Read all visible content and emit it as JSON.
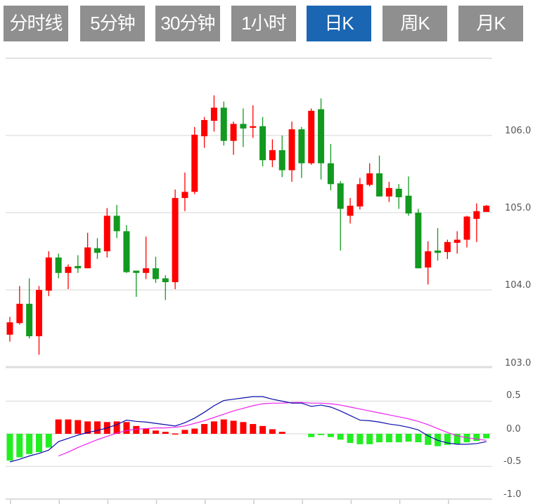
{
  "tabs": [
    {
      "label": "分时线",
      "active": false
    },
    {
      "label": "5分钟",
      "active": false
    },
    {
      "label": "30分钟",
      "active": false
    },
    {
      "label": "1小时",
      "active": false
    },
    {
      "label": "日K",
      "active": true
    },
    {
      "label": "周K",
      "active": false
    },
    {
      "label": "月K",
      "active": false
    }
  ],
  "colors": {
    "up": "#ff0000",
    "down": "#119a1f",
    "macd_up": "#ff0000",
    "macd_down": "#22ee22",
    "dif": "#0a0aaa",
    "dea": "#ee22ee",
    "tab_bg": "#8f8f8f",
    "tab_active": "#1a66b3",
    "grid": "#dddddd"
  },
  "chart_data": [
    {
      "type": "candlestick",
      "ylim": [
        103.0,
        106.5
      ],
      "yticks": [
        "106.0",
        "105.0",
        "104.0",
        "103.0"
      ],
      "ytick_values": [
        106.0,
        105.0,
        104.0,
        103.0
      ],
      "grid": true,
      "ohlc": [
        [
          103.42,
          103.65,
          103.33,
          103.58
        ],
        [
          103.57,
          104.05,
          103.55,
          103.82
        ],
        [
          103.82,
          104.15,
          103.37,
          103.4
        ],
        [
          103.4,
          104.05,
          103.16,
          104.0
        ],
        [
          103.99,
          104.5,
          103.92,
          104.42
        ],
        [
          104.42,
          104.47,
          104.15,
          104.22
        ],
        [
          104.22,
          104.33,
          104.01,
          104.3
        ],
        [
          104.31,
          104.45,
          104.22,
          104.28
        ],
        [
          104.28,
          104.74,
          104.28,
          104.55
        ],
        [
          104.54,
          104.67,
          104.4,
          104.48
        ],
        [
          104.5,
          105.06,
          104.42,
          104.96
        ],
        [
          104.96,
          105.1,
          104.67,
          104.76
        ],
        [
          104.76,
          104.84,
          104.22,
          104.23
        ],
        [
          104.25,
          104.25,
          103.91,
          104.22
        ],
        [
          104.22,
          104.69,
          104.14,
          104.28
        ],
        [
          104.28,
          104.43,
          104.09,
          104.14
        ],
        [
          104.15,
          104.19,
          103.87,
          104.1
        ],
        [
          104.1,
          105.3,
          104.01,
          105.19
        ],
        [
          105.19,
          105.52,
          105.02,
          105.27
        ],
        [
          105.27,
          106.11,
          105.24,
          106.01
        ],
        [
          105.99,
          106.24,
          105.84,
          106.2
        ],
        [
          106.19,
          106.52,
          106.05,
          106.36
        ],
        [
          106.36,
          106.44,
          105.87,
          105.93
        ],
        [
          105.93,
          106.18,
          105.75,
          106.15
        ],
        [
          106.15,
          106.35,
          105.85,
          106.09
        ],
        [
          106.1,
          106.39,
          105.97,
          106.12
        ],
        [
          106.12,
          106.24,
          105.6,
          105.68
        ],
        [
          105.68,
          105.95,
          105.59,
          105.81
        ],
        [
          105.81,
          106.0,
          105.46,
          105.55
        ],
        [
          105.55,
          106.18,
          105.4,
          106.08
        ],
        [
          106.08,
          106.11,
          105.45,
          105.64
        ],
        [
          105.64,
          106.35,
          105.62,
          106.32
        ],
        [
          106.34,
          106.48,
          105.43,
          105.64
        ],
        [
          105.64,
          105.89,
          105.29,
          105.37
        ],
        [
          105.38,
          105.41,
          104.51,
          105.05
        ],
        [
          104.96,
          105.19,
          104.86,
          105.09
        ],
        [
          105.08,
          105.45,
          105.04,
          105.37
        ],
        [
          105.36,
          105.64,
          105.34,
          105.51
        ],
        [
          105.51,
          105.74,
          105.21,
          105.21
        ],
        [
          105.21,
          105.4,
          105.14,
          105.32
        ],
        [
          105.31,
          105.37,
          105.05,
          105.2
        ],
        [
          105.22,
          105.47,
          104.96,
          104.99
        ],
        [
          105.0,
          105.05,
          104.28,
          104.28
        ],
        [
          104.29,
          104.63,
          104.07,
          104.5
        ],
        [
          104.51,
          104.8,
          104.38,
          104.48
        ],
        [
          104.49,
          104.65,
          104.4,
          104.62
        ],
        [
          104.61,
          104.76,
          104.47,
          104.65
        ],
        [
          104.65,
          104.96,
          104.55,
          104.95
        ],
        [
          104.92,
          105.12,
          104.62,
          105.02
        ],
        [
          105.01,
          105.1,
          105.01,
          105.09
        ]
      ]
    },
    {
      "type": "macd",
      "ylim": [
        -1.0,
        0.7
      ],
      "yticks": [
        "0.5",
        "0.0",
        "-0.5",
        "-1.0"
      ],
      "ytick_values": [
        0.5,
        0.0,
        -0.5,
        -1.0
      ],
      "grid": true,
      "histogram": [
        -0.41,
        -0.36,
        -0.31,
        -0.28,
        -0.21,
        0.22,
        0.22,
        0.21,
        0.19,
        0.19,
        0.18,
        0.19,
        0.18,
        0.12,
        0.08,
        0.05,
        0.03,
        0.005,
        0.06,
        0.08,
        0.15,
        0.19,
        0.22,
        0.2,
        0.18,
        0.15,
        0.12,
        0.07,
        0.03,
        0,
        0,
        -0.05,
        -0.02,
        -0.05,
        -0.09,
        -0.14,
        -0.16,
        -0.16,
        -0.13,
        -0.13,
        -0.13,
        -0.12,
        -0.13,
        -0.17,
        -0.19,
        -0.17,
        -0.16,
        -0.13,
        -0.11,
        -0.07
      ],
      "dif": [
        -0.43,
        -0.39,
        -0.34,
        -0.3,
        -0.25,
        -0.12,
        -0.07,
        -0.02,
        0.02,
        0.05,
        0.09,
        0.14,
        0.21,
        0.19,
        0.18,
        0.16,
        0.14,
        0.12,
        0.17,
        0.24,
        0.33,
        0.43,
        0.51,
        0.53,
        0.55,
        0.57,
        0.57,
        0.53,
        0.5,
        0.47,
        0.47,
        0.42,
        0.44,
        0.41,
        0.35,
        0.28,
        0.21,
        0.2,
        0.18,
        0.15,
        0.13,
        0.1,
        0.06,
        -0.03,
        -0.1,
        -0.14,
        -0.16,
        -0.16,
        -0.15,
        -0.12
      ],
      "dea": [
        null,
        null,
        null,
        null,
        null,
        -0.34,
        -0.28,
        -0.21,
        -0.15,
        -0.09,
        -0.04,
        0.01,
        0.05,
        0.07,
        0.08,
        0.09,
        0.09,
        0.1,
        0.12,
        0.16,
        0.2,
        0.25,
        0.3,
        0.35,
        0.39,
        0.43,
        0.46,
        0.47,
        0.47,
        0.48,
        0.48,
        0.47,
        0.47,
        0.46,
        0.44,
        0.41,
        0.38,
        0.35,
        0.32,
        0.29,
        0.26,
        0.23,
        0.19,
        0.14,
        0.08,
        0.02,
        -0.03,
        -0.06,
        -0.08,
        -0.1
      ]
    }
  ]
}
